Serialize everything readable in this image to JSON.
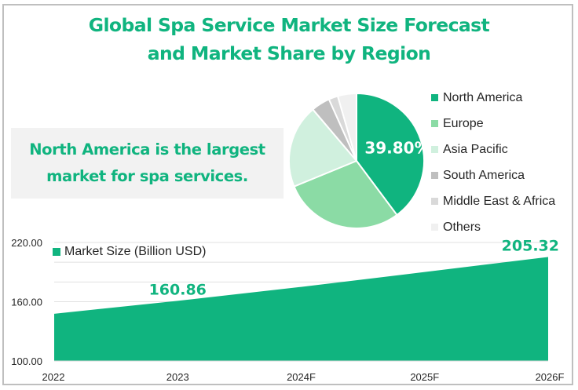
{
  "title_lines": [
    "Global Spa Service Market Size Forecast",
    "and Market Share by Region"
  ],
  "callout_lines": [
    "North America is the largest",
    "market for spa services."
  ],
  "colors": {
    "accent": "#10b47f",
    "border": "#bfbfbf",
    "callout_bg": "#f2f2f2",
    "grid": "#e0e0e0"
  },
  "chart_data": [
    {
      "type": "pie",
      "title": "Market Share by Region",
      "labels": [
        "North America",
        "Europe",
        "Asia Pacific",
        "South America",
        "Middle East & Africa",
        "Others"
      ],
      "values": [
        39.8,
        29.0,
        20.0,
        4.5,
        2.2,
        4.5
      ],
      "colors": [
        "#10b47f",
        "#8bdba5",
        "#d0f0de",
        "#bfbfbf",
        "#d9d9d9",
        "#f0f0f0"
      ],
      "data_labels": [
        "39.80%",
        "",
        "",
        "",
        "",
        ""
      ],
      "legend": "right",
      "start_angle": "top, clockwise"
    },
    {
      "type": "area",
      "title": "Market Size Forecast",
      "series": [
        {
          "name": "Market Size (Billion USD)",
          "values": [
            147.8,
            160.86,
            175.0,
            190.1,
            205.32
          ],
          "color": "#10b47f"
        }
      ],
      "categories": [
        "2022",
        "2023",
        "2024F",
        "2025F",
        "2026F"
      ],
      "data_labels": {
        "2023": "160.86",
        "2026F": "205.32"
      },
      "ylim": [
        100,
        220
      ],
      "yticks": [
        100,
        160,
        220
      ],
      "ytick_labels": [
        "100.00",
        "160.00",
        "220.00"
      ],
      "minor_gridlines": [
        120,
        140,
        180,
        200
      ],
      "grid": true,
      "legend": "top-left",
      "xlabel": "",
      "ylabel": ""
    }
  ]
}
